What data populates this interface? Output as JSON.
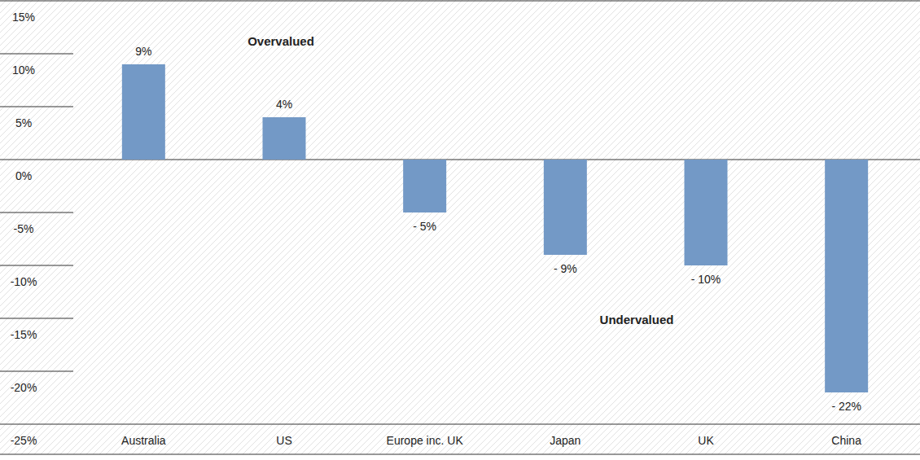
{
  "chart_data": {
    "type": "bar",
    "categories": [
      "Australia",
      "US",
      "Europe inc. UK",
      "Japan",
      "UK",
      "China"
    ],
    "values": [
      9,
      4,
      -5,
      -9,
      -10,
      -22
    ],
    "value_labels": [
      "9%",
      "4%",
      "- 5%",
      "- 9%",
      "- 10%",
      "- 22%"
    ],
    "color": "#7399c6",
    "ylim": [
      -25,
      15
    ],
    "yticks": [
      {
        "value": -25,
        "label": "-25%"
      },
      {
        "value": -20,
        "label": "-20%"
      },
      {
        "value": -15,
        "label": "-15%"
      },
      {
        "value": -10,
        "label": "-10%"
      },
      {
        "value": -5,
        "label": "-5%"
      },
      {
        "value": 0,
        "label": "0%"
      },
      {
        "value": 5,
        "label": "5%"
      },
      {
        "value": 10,
        "label": "10%"
      },
      {
        "value": 15,
        "label": "15%"
      }
    ],
    "grid": false,
    "data_labels": true,
    "annotations": [
      {
        "text": "Overvalued"
      },
      {
        "text": "Undervalued"
      }
    ]
  }
}
